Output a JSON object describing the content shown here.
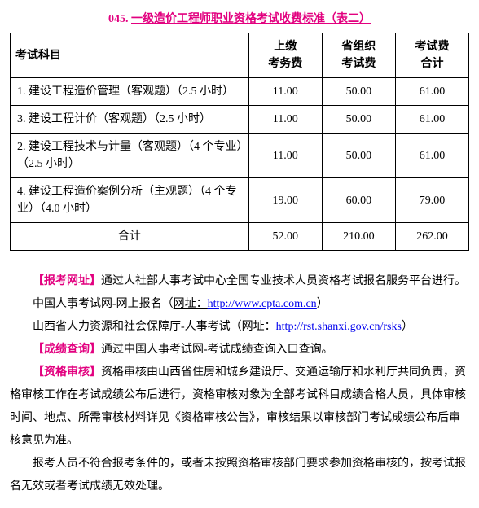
{
  "title": {
    "number": "045.",
    "text": "一级造价工程师职业资格考试收费标准（表二）"
  },
  "table": {
    "headers": {
      "subject": "考试科目",
      "fee1_line1": "上缴",
      "fee1_line2": "考务费",
      "fee2_line1": "省组织",
      "fee2_line2": "考试费",
      "fee3_line1": "考试费",
      "fee3_line2": "合计"
    },
    "rows": [
      {
        "subject": "1. 建设工程造价管理（客观题）（2.5 小时）",
        "f1": "11.00",
        "f2": "50.00",
        "f3": "61.00"
      },
      {
        "subject": "3. 建设工程计价（客观题）（2.5 小时）",
        "f1": "11.00",
        "f2": "50.00",
        "f3": "61.00"
      },
      {
        "subject": "2. 建设工程技术与计量（客观题）（4 个专业）（2.5 小时）",
        "f1": "11.00",
        "f2": "50.00",
        "f3": "61.00"
      },
      {
        "subject": "4. 建设工程造价案例分析（主观题）（4 个专业）（4.0 小时）",
        "f1": "19.00",
        "f2": "60.00",
        "f3": "79.00"
      }
    ],
    "total": {
      "label": "合计",
      "f1": "52.00",
      "f2": "210.00",
      "f3": "262.00"
    }
  },
  "body": {
    "p1_label": "【报考网址】",
    "p1_text": "通过人社部人事考试中心全国专业技术人员资格考试报名服务平台进行。",
    "p2_pre": "中国人事考试网-网上报名（",
    "p2_link_label": "网址：",
    "p2_link": "http://www.cpta.com.cn",
    "p2_post": "）",
    "p3_pre": "山西省人力资源和社会保障厅-人事考试（",
    "p3_link_label": "网址：",
    "p3_link": "http://rst.shanxi.gov.cn/rsks",
    "p3_post": "）",
    "p4_label": "【成绩查询】",
    "p4_text": "通过中国人事考试网-考试成绩查询入口查询。",
    "p5_label": "【资格审核】",
    "p5_text": "资格审核由山西省住房和城乡建设厅、交通运输厅和水利厅共同负责，资格审核工作在考试成绩公布后进行，资格审核对象为全部考试科目成绩合格人员，具体审核时间、地点、所需审核材料详见《资格审核公告》，审核结果以审核部门考试成绩公布后审核意见为准。",
    "p6_text": "报考人员不符合报考条件的，或者未按照资格审核部门要求参加资格审核的，按考试报名无效或者考试成绩无效处理。"
  }
}
